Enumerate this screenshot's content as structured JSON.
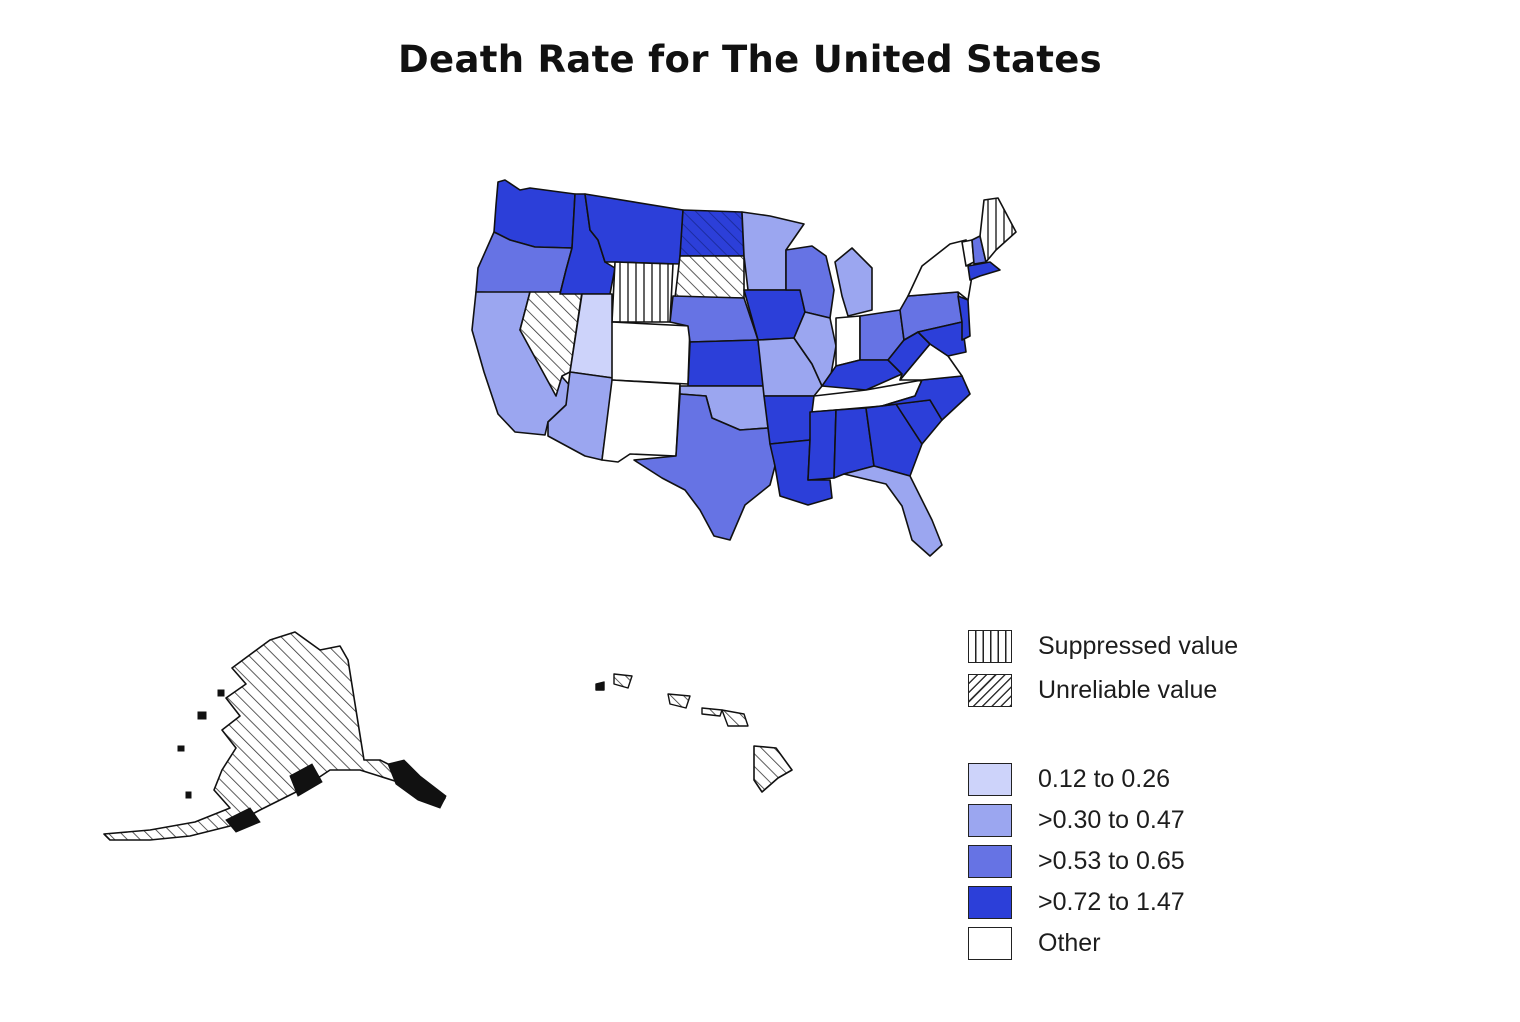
{
  "title": "Death Rate for The United States",
  "colors": {
    "c1": "#cdd3fa",
    "c2": "#9ba6f0",
    "c3": "#6673e4",
    "c4": "#2c3fd9",
    "other": "#ffffff",
    "border": "#111111"
  },
  "legend": {
    "suppressed": "Suppressed value",
    "unreliable": "Unreliable value",
    "class1": "0.12 to 0.26",
    "class2": ">0.30 to 0.47",
    "class3": ">0.53 to 0.65",
    "class4": ">0.72 to 1.47",
    "other": "Other"
  },
  "state_classes": {
    "WA": "c4",
    "OR": "c3",
    "CA": "c2",
    "NV": "unreliable",
    "ID": "c4",
    "MT": "c4",
    "WY": "suppressed",
    "UT": "c1",
    "AZ": "c2",
    "CO": "other",
    "NM": "other",
    "ND": "c4-unreliable",
    "SD": "unreliable",
    "NE": "c3",
    "KS": "c4",
    "OK": "c2",
    "TX": "c3",
    "MN": "c2",
    "IA": "c4",
    "MO": "c2",
    "AR": "c4",
    "LA": "c4",
    "WI": "c3",
    "IL": "c2",
    "MI": "c2",
    "IN": "other",
    "OH": "c3",
    "KY": "c4",
    "TN": "other",
    "MS": "c4",
    "AL": "c4",
    "GA": "c4",
    "FL": "c2",
    "SC": "c4",
    "NC": "c4",
    "VA": "other",
    "WV": "c4",
    "PA": "c3",
    "NY": "other",
    "ME": "suppressed",
    "NH": "c3",
    "VT": "other",
    "MA": "c4",
    "NJ": "c4",
    "MD": "c4",
    "AK": "unreliable",
    "HI": "unreliable"
  }
}
